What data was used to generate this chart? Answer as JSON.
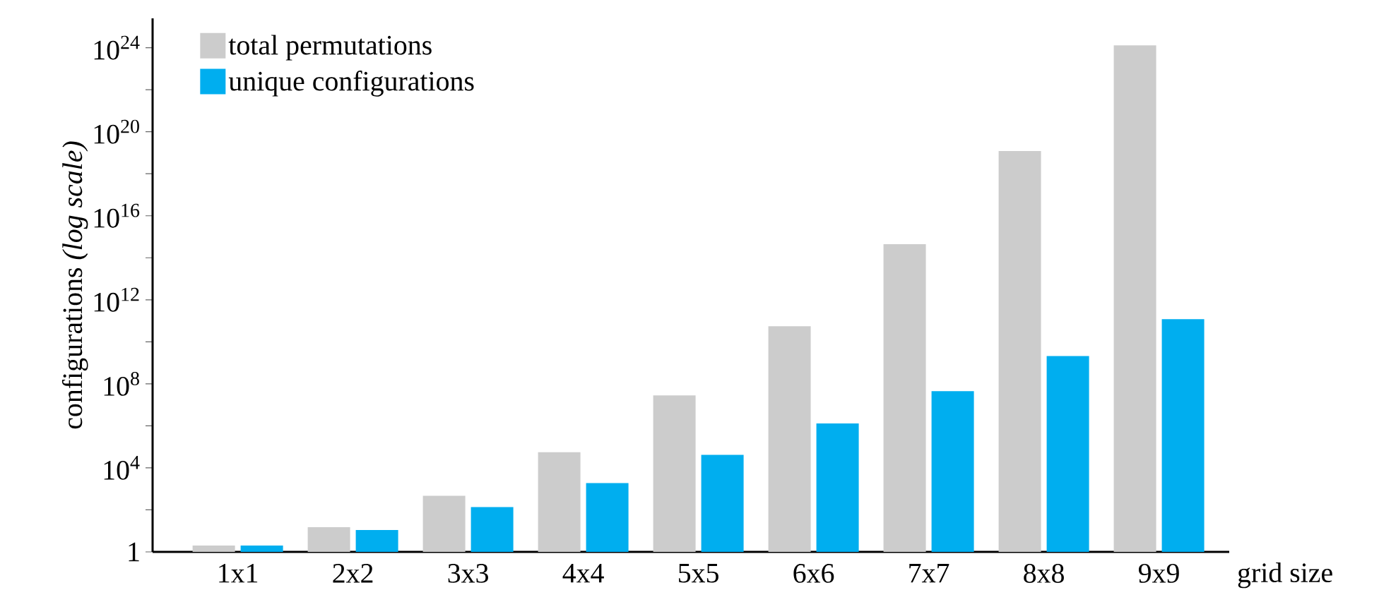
{
  "chart_data": {
    "type": "bar",
    "xlabel": "grid size",
    "ylabel": "configurations *(log scale)*",
    "categories": [
      "1x1",
      "2x2",
      "3x3",
      "4x4",
      "5x5",
      "6x6",
      "7x7",
      "8x8",
      "9x9"
    ],
    "series": [
      {
        "name": "total permutations",
        "color": "#cccccc",
        "values": [
          2,
          15,
          470,
          56000,
          28000000,
          55000000000,
          440000000000000,
          1.2e+19,
          1.3e+24
        ]
      },
      {
        "name": "unique configurations",
        "color": "#00aeef",
        "values": [
          2,
          11,
          135,
          1900,
          42000,
          1300000,
          45000000,
          2100000000,
          120000000000
        ]
      }
    ],
    "log": "y",
    "ylim": [
      1,
      2.5e+25
    ],
    "yticks": [
      1,
      {
        "value": 100,
        "label": null
      },
      {
        "value": 10000,
        "label": "10$^{4}$"
      },
      {
        "value": 1000000,
        "label": null
      },
      {
        "value": 100000000,
        "label": "10$^{8}$"
      },
      {
        "value": 10000000000,
        "label": null
      },
      {
        "value": 1000000000000,
        "label": "10$^{12}$"
      },
      {
        "value": 100000000000000,
        "label": null
      },
      {
        "value": 1e+16,
        "label": "10$^{16}$"
      },
      {
        "value": 1e+18,
        "label": null
      },
      {
        "value": 1e+20,
        "label": "10$^{20}$"
      },
      {
        "value": 1e+22,
        "label": null
      },
      {
        "value": 1e+24,
        "label": "10$^{24}$"
      }
    ],
    "legend": "top left",
    "grid": false
  }
}
